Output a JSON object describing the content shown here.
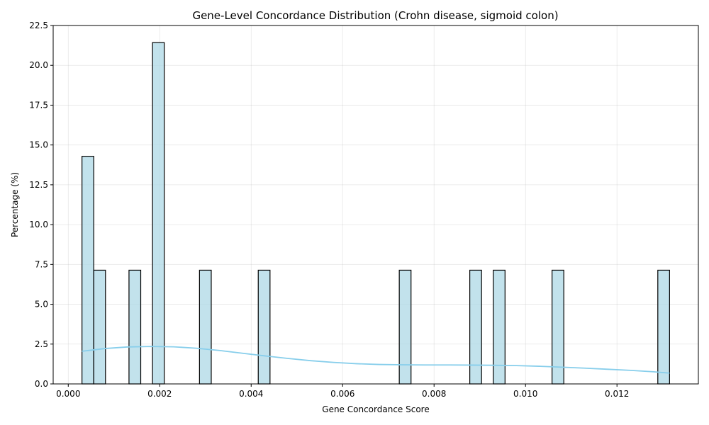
{
  "chart_data": {
    "type": "bar",
    "subtype": "histogram",
    "title": "Gene-Level Concordance Distribution (Crohn disease, sigmoid colon)",
    "xlabel": "Gene Concordance Score",
    "ylabel": "Percentage (%)",
    "xlim": [
      -0.00033,
      0.01378
    ],
    "ylim": [
      0,
      22.5
    ],
    "grid": true,
    "xticks": [
      0.0,
      0.002,
      0.004,
      0.006,
      0.008,
      0.01,
      0.012
    ],
    "xtick_labels": [
      "0.000",
      "0.002",
      "0.004",
      "0.006",
      "0.008",
      "0.010",
      "0.012"
    ],
    "yticks": [
      0.0,
      2.5,
      5.0,
      7.5,
      10.0,
      12.5,
      15.0,
      17.5,
      20.0,
      22.5
    ],
    "ytick_labels": [
      "0.0",
      "2.5",
      "5.0",
      "7.5",
      "10.0",
      "12.5",
      "15.0",
      "17.5",
      "20.0",
      "22.5"
    ],
    "bin_width": 0.000257,
    "bars": [
      {
        "x0": 0.0003,
        "x1": 0.000557,
        "value": 14.29
      },
      {
        "x0": 0.000557,
        "x1": 0.000814,
        "value": 7.14
      },
      {
        "x0": 0.001328,
        "x1": 0.001585,
        "value": 7.14
      },
      {
        "x0": 0.001842,
        "x1": 0.002099,
        "value": 21.43
      },
      {
        "x0": 0.00287,
        "x1": 0.003127,
        "value": 7.14
      },
      {
        "x0": 0.004155,
        "x1": 0.004412,
        "value": 7.14
      },
      {
        "x0": 0.007239,
        "x1": 0.007496,
        "value": 7.14
      },
      {
        "x0": 0.008781,
        "x1": 0.009038,
        "value": 7.14
      },
      {
        "x0": 0.009295,
        "x1": 0.009552,
        "value": 7.14
      },
      {
        "x0": 0.01058,
        "x1": 0.010837,
        "value": 7.14
      },
      {
        "x0": 0.012893,
        "x1": 0.01315,
        "value": 7.14
      }
    ],
    "kde": {
      "x": [
        0.0003,
        0.0008,
        0.0013,
        0.0018,
        0.0023,
        0.0028,
        0.0033,
        0.0038,
        0.0043,
        0.0048,
        0.0053,
        0.0058,
        0.0063,
        0.0068,
        0.0073,
        0.0078,
        0.0083,
        0.0088,
        0.0093,
        0.0098,
        0.0103,
        0.0108,
        0.0113,
        0.0118,
        0.0123,
        0.0128,
        0.01315
      ],
      "y": [
        2.05,
        2.22,
        2.32,
        2.35,
        2.33,
        2.24,
        2.1,
        1.93,
        1.76,
        1.6,
        1.46,
        1.35,
        1.27,
        1.22,
        1.2,
        1.19,
        1.19,
        1.18,
        1.17,
        1.15,
        1.11,
        1.05,
        0.99,
        0.92,
        0.85,
        0.76,
        0.68
      ]
    },
    "colors": {
      "bar_fill": "#add8e6",
      "bar_edge": "#000000",
      "kde_line": "#87ceeb"
    }
  }
}
